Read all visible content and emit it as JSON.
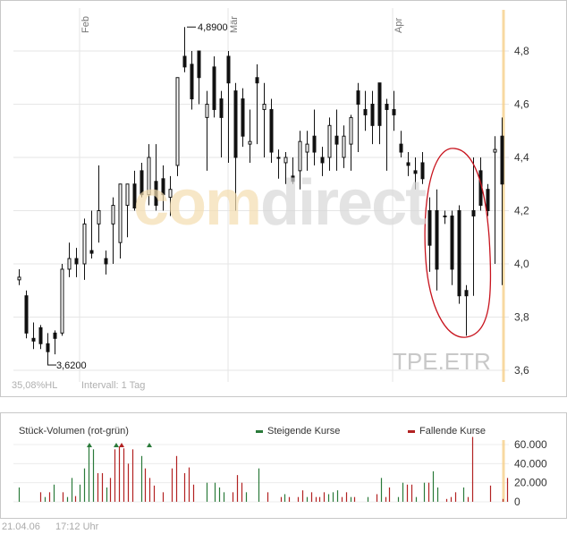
{
  "main": {
    "months": [
      "Feb",
      "Mär",
      "Apr"
    ],
    "high_label": "4,8900",
    "low_label": "3,6200",
    "indicator_text": "35,08%HL",
    "interval_text": "Intervall: 1 Tag",
    "ticker": "TPE.ETR",
    "watermark_part1": "com",
    "watermark_part2": "direct"
  },
  "volume": {
    "title": "Stück-Volumen (rot-grün)",
    "legend_up": "Steigende Kurse",
    "legend_down": "Fallende Kurse",
    "up_color": "#2a7a3a",
    "down_color": "#b22222"
  },
  "footer": {
    "date": "21.04.06",
    "time": "17:12 Uhr"
  },
  "chart_data": [
    {
      "type": "candlestick",
      "title": "",
      "y_ticks": [
        "3,6",
        "3,8",
        "4,0",
        "4,2",
        "4,4",
        "4,6",
        "4,8"
      ],
      "ylim": [
        3.55,
        4.95
      ],
      "grid": true,
      "high_marker": 4.89,
      "low_marker": 3.62,
      "candles": [
        [
          3.94,
          3.98,
          3.92,
          3.95
        ],
        [
          3.88,
          3.9,
          3.72,
          3.74
        ],
        [
          3.72,
          3.78,
          3.68,
          3.71
        ],
        [
          3.76,
          3.77,
          3.68,
          3.7
        ],
        [
          3.7,
          3.74,
          3.62,
          3.67
        ],
        [
          3.74,
          3.75,
          3.66,
          3.72
        ],
        [
          3.74,
          4.0,
          3.73,
          3.98
        ],
        [
          3.98,
          4.08,
          3.95,
          4.02
        ],
        [
          4.02,
          4.06,
          3.95,
          4.0
        ],
        [
          4.0,
          4.17,
          3.94,
          4.15
        ],
        [
          4.05,
          4.2,
          4.02,
          4.04
        ],
        [
          4.15,
          4.37,
          4.08,
          4.2
        ],
        [
          4.02,
          4.05,
          3.96,
          4.0
        ],
        [
          4.15,
          4.25,
          4.0,
          4.22
        ],
        [
          4.08,
          4.3,
          4.02,
          4.3
        ],
        [
          4.22,
          4.3,
          4.1,
          4.3
        ],
        [
          4.3,
          4.35,
          4.2,
          4.21
        ],
        [
          4.35,
          4.38,
          4.25,
          4.26
        ],
        [
          4.26,
          4.45,
          4.22,
          4.4
        ],
        [
          4.31,
          4.45,
          4.2,
          4.22
        ],
        [
          4.32,
          4.37,
          4.2,
          4.26
        ],
        [
          4.25,
          4.33,
          4.18,
          4.28
        ],
        [
          4.37,
          4.7,
          4.33,
          4.7
        ],
        [
          4.78,
          4.89,
          4.72,
          4.74
        ],
        [
          4.75,
          4.8,
          4.58,
          4.62
        ],
        [
          4.8,
          4.8,
          4.6,
          4.7
        ],
        [
          4.55,
          4.65,
          4.35,
          4.6
        ],
        [
          4.74,
          4.78,
          4.55,
          4.58
        ],
        [
          4.62,
          4.65,
          4.4,
          4.55
        ],
        [
          4.78,
          4.8,
          4.38,
          4.68
        ],
        [
          4.65,
          4.68,
          4.2,
          4.4
        ],
        [
          4.62,
          4.66,
          4.44,
          4.48
        ],
        [
          4.45,
          4.58,
          4.38,
          4.46
        ],
        [
          4.7,
          4.75,
          4.45,
          4.68
        ],
        [
          4.58,
          4.68,
          4.4,
          4.6
        ],
        [
          4.58,
          4.62,
          4.38,
          4.42
        ],
        [
          4.4,
          4.43,
          4.32,
          4.4
        ],
        [
          4.38,
          4.42,
          4.3,
          4.4
        ],
        [
          4.33,
          4.4,
          4.3,
          4.31
        ],
        [
          4.35,
          4.5,
          4.28,
          4.46
        ],
        [
          4.42,
          4.5,
          4.35,
          4.45
        ],
        [
          4.48,
          4.58,
          4.37,
          4.42
        ],
        [
          4.4,
          4.44,
          4.33,
          4.38
        ],
        [
          4.4,
          4.55,
          4.35,
          4.52
        ],
        [
          4.48,
          4.58,
          4.35,
          4.45
        ],
        [
          4.4,
          4.52,
          4.36,
          4.48
        ],
        [
          4.45,
          4.56,
          4.35,
          4.55
        ],
        [
          4.65,
          4.68,
          4.42,
          4.6
        ],
        [
          4.58,
          4.65,
          4.5,
          4.56
        ],
        [
          4.6,
          4.65,
          4.45,
          4.52
        ],
        [
          4.68,
          4.68,
          4.45,
          4.52
        ],
        [
          4.6,
          4.62,
          4.35,
          4.58
        ],
        [
          4.58,
          4.65,
          4.5,
          4.56
        ],
        [
          4.45,
          4.5,
          4.4,
          4.42
        ],
        [
          4.38,
          4.42,
          4.33,
          4.37
        ],
        [
          4.35,
          4.4,
          4.28,
          4.34
        ],
        [
          4.38,
          4.42,
          4.3,
          4.32
        ],
        [
          4.2,
          4.25,
          3.97,
          4.07
        ],
        [
          4.2,
          4.28,
          3.9,
          3.98
        ],
        [
          4.18,
          4.2,
          4.15,
          4.18
        ],
        [
          4.18,
          4.2,
          3.92,
          3.98
        ],
        [
          4.2,
          4.22,
          3.85,
          3.88
        ],
        [
          3.9,
          3.92,
          3.73,
          3.88
        ],
        [
          4.2,
          4.4,
          3.88,
          4.18
        ],
        [
          4.35,
          4.4,
          4.2,
          4.22
        ],
        [
          4.28,
          4.3,
          4.18,
          4.2
        ],
        [
          4.42,
          4.48,
          4.0,
          4.43
        ],
        [
          4.48,
          4.55,
          3.92,
          4.3
        ]
      ],
      "circled_region": "candles 57-63"
    },
    {
      "type": "bar",
      "title": "Stück-Volumen (rot-grün)",
      "y_ticks": [
        "0",
        "20.000",
        "40.000",
        "60.000"
      ],
      "ylim": [
        0,
        70000
      ],
      "series_colors": {
        "up": "#2a7a3a",
        "down": "#b22222"
      },
      "values": [
        15000,
        0,
        0,
        0,
        0,
        10000,
        5000,
        10000,
        18000,
        0,
        10000,
        5000,
        25000,
        6000,
        18000,
        35000,
        60000,
        55000,
        30000,
        30000,
        15000,
        25000,
        55000,
        58000,
        56000,
        40000,
        55000,
        0,
        48000,
        35000,
        25000,
        17000,
        0,
        10000,
        0,
        35000,
        48000,
        0,
        30000,
        36000,
        18000,
        0,
        0,
        20000,
        0,
        20000,
        15000,
        10000,
        0,
        10000,
        28000,
        20000,
        10000,
        0,
        0,
        35000,
        0,
        10000,
        0,
        0,
        5000,
        8000,
        5000,
        0,
        5000,
        12000,
        5000,
        10000,
        5000,
        5000,
        10000,
        8000,
        10000,
        12000,
        5000,
        10000,
        5000,
        5000,
        0,
        0,
        5000,
        0,
        8000,
        25000,
        5000,
        15000,
        0,
        5000,
        20000,
        18000,
        18000,
        5000,
        0,
        20000,
        20000,
        32000,
        15000,
        0,
        3000,
        5000,
        10000,
        0,
        15000,
        5000,
        68000,
        0,
        0,
        0,
        17000,
        0,
        0,
        3000,
        25000
      ],
      "up_down": [
        "u",
        "u",
        "u",
        "u",
        "u",
        "d",
        "u",
        "d",
        "u",
        "u",
        "d",
        "u",
        "u",
        "d",
        "u",
        "u",
        "u",
        "u",
        "d",
        "d",
        "u",
        "d",
        "d",
        "d",
        "d",
        "d",
        "d",
        "u",
        "u",
        "d",
        "d",
        "d",
        "u",
        "d",
        "u",
        "d",
        "d",
        "u",
        "d",
        "d",
        "d",
        "u",
        "u",
        "u",
        "d",
        "u",
        "u",
        "u",
        "u",
        "d",
        "d",
        "d",
        "u",
        "u",
        "u",
        "u",
        "d",
        "d",
        "d",
        "d",
        "d",
        "u",
        "d",
        "u",
        "d",
        "d",
        "u",
        "d",
        "d",
        "d",
        "d",
        "u",
        "u",
        "u",
        "d",
        "d",
        "u",
        "d",
        "d",
        "u",
        "u",
        "u",
        "d",
        "u",
        "d",
        "d",
        "u",
        "u",
        "u",
        "d",
        "d",
        "u",
        "u",
        "u",
        "d",
        "u",
        "u",
        "u",
        "d",
        "d",
        "d",
        "u",
        "u",
        "d",
        "d",
        "u",
        "u",
        "u",
        "d",
        "d",
        "u",
        "d",
        "d"
      ]
    }
  ]
}
